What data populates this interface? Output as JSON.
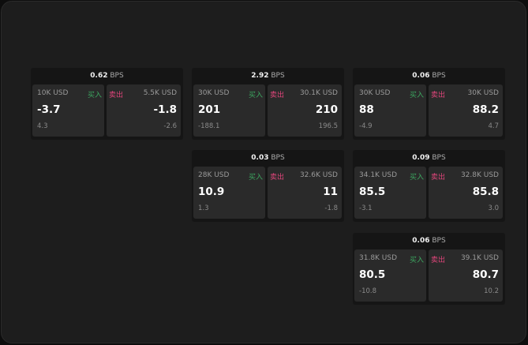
{
  "colors": {
    "buy": "#3ca760",
    "sell": "#e0457b"
  },
  "labels": {
    "buy": "买入",
    "sell": "卖出",
    "unit": "BPS"
  },
  "cards": [
    {
      "spread": "0.62",
      "buy": {
        "qty": "10K USD",
        "price": "-3.7",
        "change": "4.3"
      },
      "sell": {
        "qty": "5.5K USD",
        "price": "-1.8",
        "change": "-2.6"
      }
    },
    {
      "spread": "2.92",
      "buy": {
        "qty": "30K USD",
        "price": "201",
        "change": "-188.1"
      },
      "sell": {
        "qty": "30.1K USD",
        "price": "210",
        "change": "196.5"
      }
    },
    {
      "spread": "0.06",
      "buy": {
        "qty": "30K USD",
        "price": "88",
        "change": "-4.9"
      },
      "sell": {
        "qty": "30K USD",
        "price": "88.2",
        "change": "4.7"
      }
    },
    {
      "spread": "0.03",
      "buy": {
        "qty": "28K USD",
        "price": "10.9",
        "change": "1.3"
      },
      "sell": {
        "qty": "32.6K USD",
        "price": "11",
        "change": "-1.8"
      }
    },
    {
      "spread": "0.09",
      "buy": {
        "qty": "34.1K USD",
        "price": "85.5",
        "change": "-3.1"
      },
      "sell": {
        "qty": "32.8K USD",
        "price": "85.8",
        "change": "3.0"
      }
    },
    {
      "spread": "0.06",
      "buy": {
        "qty": "31.8K USD",
        "price": "80.5",
        "change": "-10.8"
      },
      "sell": {
        "qty": "39.1K USD",
        "price": "80.7",
        "change": "10.2"
      }
    }
  ]
}
